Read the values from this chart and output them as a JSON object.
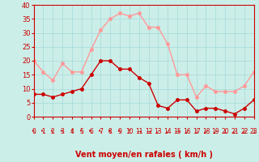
{
  "hours": [
    0,
    1,
    2,
    3,
    4,
    5,
    6,
    7,
    8,
    9,
    10,
    11,
    12,
    13,
    14,
    15,
    16,
    17,
    18,
    19,
    20,
    21,
    22,
    23
  ],
  "wind_avg": [
    8,
    8,
    7,
    8,
    9,
    10,
    15,
    20,
    20,
    17,
    17,
    14,
    12,
    4,
    3,
    6,
    6,
    2,
    3,
    3,
    2,
    1,
    3,
    6
  ],
  "wind_gust": [
    20,
    16,
    13,
    19,
    16,
    16,
    24,
    31,
    35,
    37,
    36,
    37,
    32,
    32,
    26,
    15,
    15,
    7,
    11,
    9,
    9,
    9,
    11,
    16
  ],
  "line_color_avg": "#cc0000",
  "line_color_gust": "#ff9999",
  "bg_color": "#cceee8",
  "grid_color": "#aadddd",
  "xlabel": "Vent moyen/en rafales ( km/h )",
  "xlabel_color": "#cc0000",
  "xlabel_fontsize": 7,
  "tick_color": "#cc0000",
  "ylim": [
    0,
    40
  ],
  "yticks": [
    0,
    5,
    10,
    15,
    20,
    25,
    30,
    35,
    40
  ],
  "marker": "o",
  "markersize": 2.5,
  "linewidth": 1.0
}
